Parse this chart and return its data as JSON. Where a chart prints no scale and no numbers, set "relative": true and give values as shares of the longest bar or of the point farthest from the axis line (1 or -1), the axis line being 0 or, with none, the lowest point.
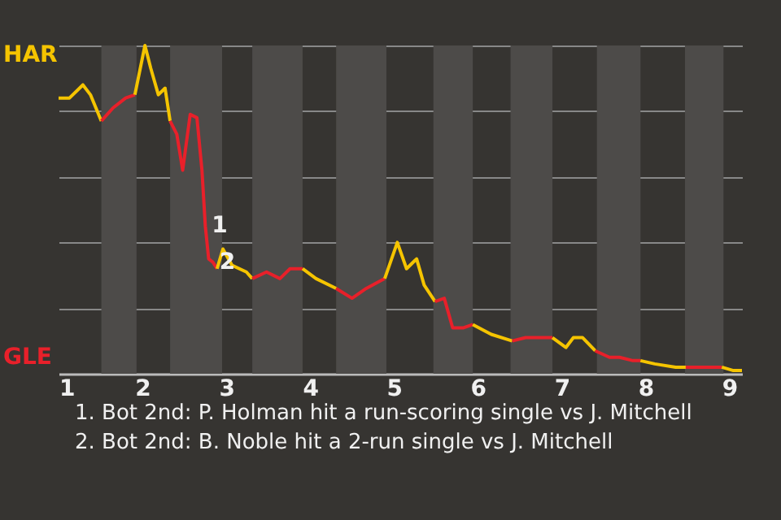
{
  "chart_data": {
    "type": "line",
    "relative": true,
    "grid": "y",
    "marker": "none",
    "line_style": "solid",
    "xlim": [
      1,
      9.15
    ],
    "xticks": [
      1,
      2,
      3,
      4,
      5,
      6,
      7,
      8,
      9
    ],
    "series": [
      {
        "color": "#f5c400",
        "x": [
          1,
          1.13,
          1.29,
          1.38,
          1.51
        ],
        "values": [
          0.84,
          0.84,
          0.88,
          0.85,
          0.77
        ]
      },
      {
        "color": "#e8202a",
        "x": [
          1.51,
          1.65,
          1.8,
          1.91
        ],
        "values": [
          0.77,
          0.81,
          0.84,
          0.85
        ]
      },
      {
        "color": "#f5c400",
        "x": [
          1.91,
          2.03,
          2.1,
          2.19,
          2.27,
          2.33
        ],
        "values": [
          0.85,
          1.0,
          0.93,
          0.85,
          0.87,
          0.77
        ]
      },
      {
        "color": "#e8202a",
        "x": [
          2.33,
          2.41,
          2.48,
          2.57,
          2.65,
          2.71,
          2.75,
          2.79,
          2.84,
          2.89
        ],
        "values": [
          0.77,
          0.73,
          0.62,
          0.79,
          0.78,
          0.62,
          0.45,
          0.35,
          0.34,
          0.32
        ]
      },
      {
        "color": "#f5c400",
        "x": [
          2.89,
          2.96,
          3.07,
          3.24,
          3.31
        ],
        "values": [
          0.32,
          0.38,
          0.33,
          0.31,
          0.29
        ]
      },
      {
        "color": "#e8202a",
        "x": [
          3.31,
          3.48,
          3.64,
          3.76,
          3.91
        ],
        "values": [
          0.29,
          0.31,
          0.29,
          0.32,
          0.32
        ]
      },
      {
        "color": "#f5c400",
        "x": [
          3.91,
          4.07,
          4.31
        ],
        "values": [
          0.32,
          0.29,
          0.26
        ]
      },
      {
        "color": "#e8202a",
        "x": [
          4.31,
          4.5,
          4.67,
          4.89
        ],
        "values": [
          0.26,
          0.23,
          0.26,
          0.29
        ]
      },
      {
        "color": "#f5c400",
        "x": [
          4.89,
          5.04,
          5.15,
          5.27,
          5.36,
          5.49
        ],
        "values": [
          0.29,
          0.4,
          0.32,
          0.35,
          0.27,
          0.22
        ]
      },
      {
        "color": "#e8202a",
        "x": [
          5.49,
          5.6,
          5.7,
          5.83,
          5.94
        ],
        "values": [
          0.22,
          0.23,
          0.14,
          0.14,
          0.15
        ]
      },
      {
        "color": "#f5c400",
        "x": [
          5.94,
          6.16,
          6.41
        ],
        "values": [
          0.15,
          0.12,
          0.1
        ]
      },
      {
        "color": "#e8202a",
        "x": [
          6.41,
          6.57,
          6.89
        ],
        "values": [
          0.1,
          0.11,
          0.11
        ]
      },
      {
        "color": "#f5c400",
        "x": [
          6.89,
          7.05,
          7.14,
          7.25,
          7.4
        ],
        "values": [
          0.11,
          0.08,
          0.11,
          0.11,
          0.07
        ]
      },
      {
        "color": "#e8202a",
        "x": [
          7.4,
          7.57,
          7.69,
          7.85,
          7.94
        ],
        "values": [
          0.07,
          0.05,
          0.05,
          0.04,
          0.04
        ]
      },
      {
        "color": "#f5c400",
        "x": [
          7.94,
          8.11,
          8.36,
          8.48
        ],
        "values": [
          0.04,
          0.03,
          0.02,
          0.02
        ]
      },
      {
        "color": "#e8202a",
        "x": [
          8.48,
          8.91
        ],
        "values": [
          0.02,
          0.02
        ]
      },
      {
        "color": "#f5c400",
        "x": [
          8.91,
          9.04,
          9.15
        ],
        "values": [
          0.02,
          0.01,
          0.01
        ]
      }
    ],
    "bands": [
      {
        "axis": "x",
        "from": 1.51,
        "to": 1.93,
        "color": "#4d4b49"
      },
      {
        "axis": "x",
        "from": 2.33,
        "to": 2.95,
        "color": "#4d4b49"
      },
      {
        "axis": "x",
        "from": 3.31,
        "to": 3.91,
        "color": "#4d4b49"
      },
      {
        "axis": "x",
        "from": 4.31,
        "to": 4.91,
        "color": "#4d4b49"
      },
      {
        "axis": "x",
        "from": 5.47,
        "to": 5.94,
        "color": "#4d4b49"
      },
      {
        "axis": "x",
        "from": 6.39,
        "to": 6.89,
        "color": "#4d4b49"
      },
      {
        "axis": "x",
        "from": 7.42,
        "to": 7.94,
        "color": "#4d4b49"
      },
      {
        "axis": "x",
        "from": 8.47,
        "to": 8.93,
        "color": "#4d4b49"
      }
    ],
    "annotations": [
      "HAR",
      "GLE",
      {
        "text": "1",
        "x": 2.75,
        "y": 0.45
      },
      {
        "text": "2",
        "x": 2.84,
        "y": 0.34
      },
      "1. Bot 2nd: P. Holman hit a run-scoring single vs J. Mitchell",
      "2. Bot 2nd: B. Noble hit a 2-run single vs J. Mitchell"
    ]
  }
}
